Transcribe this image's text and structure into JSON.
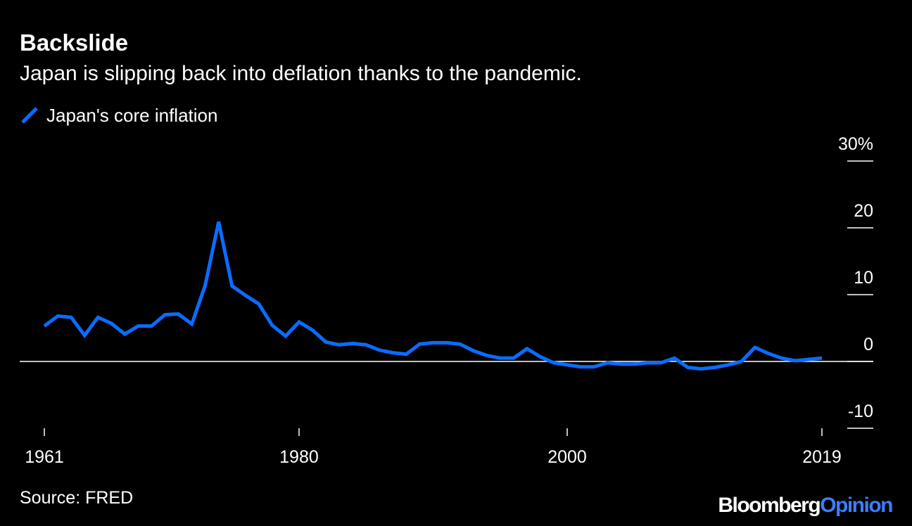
{
  "header": {
    "title": "Backslide",
    "subtitle": "Japan is slipping back into deflation thanks to the pandemic."
  },
  "footer": {
    "source": "Source: FRED",
    "brand_primary": "Bloomberg",
    "brand_secondary": "Opinion"
  },
  "colors": {
    "background": "#000000",
    "line": "#0a6cff",
    "text": "#ffffff",
    "brand_accent": "#3d7dff"
  },
  "chart_data": {
    "type": "line",
    "title": "Backslide",
    "subtitle": "Japan is slipping back into deflation thanks to the pandemic.",
    "xlabel": "",
    "ylabel": "",
    "legend_position": "top-left",
    "grid": false,
    "x_ticks": [
      "1961",
      "1980",
      "2000",
      "2019"
    ],
    "y_axis": {
      "side": "right",
      "ticks": [
        30,
        20,
        10,
        0,
        -10
      ],
      "tick_labels": [
        "30%",
        "20",
        "10",
        "0",
        "-10"
      ],
      "ylim": [
        -10,
        30
      ]
    },
    "xlim": [
      1961,
      2019
    ],
    "series": [
      {
        "name": "Japan's core inflation",
        "x": [
          1961,
          1962,
          1963,
          1964,
          1965,
          1966,
          1967,
          1968,
          1969,
          1970,
          1971,
          1972,
          1973,
          1974,
          1975,
          1976,
          1977,
          1978,
          1979,
          1980,
          1981,
          1982,
          1983,
          1984,
          1985,
          1986,
          1987,
          1988,
          1989,
          1990,
          1991,
          1992,
          1993,
          1994,
          1995,
          1996,
          1997,
          1998,
          1999,
          2000,
          2001,
          2002,
          2003,
          2004,
          2005,
          2006,
          2007,
          2008,
          2009,
          2010,
          2011,
          2012,
          2013,
          2014,
          2015,
          2016,
          2017,
          2018,
          2019
        ],
        "values": [
          5.3,
          6.8,
          6.6,
          3.9,
          6.6,
          5.7,
          4.1,
          5.3,
          5.3,
          7.0,
          7.1,
          5.6,
          11.4,
          20.9,
          11.3,
          9.9,
          8.6,
          5.4,
          3.8,
          5.9,
          4.7,
          2.9,
          2.5,
          2.7,
          2.5,
          1.7,
          1.3,
          1.1,
          2.6,
          2.8,
          2.8,
          2.6,
          1.6,
          0.9,
          0.5,
          0.5,
          1.9,
          0.7,
          -0.2,
          -0.5,
          -0.8,
          -0.8,
          -0.2,
          -0.4,
          -0.4,
          -0.2,
          -0.2,
          0.5,
          -0.9,
          -1.1,
          -0.9,
          -0.5,
          0.0,
          2.1,
          1.2,
          0.5,
          0.1,
          0.3,
          0.5
        ]
      }
    ]
  }
}
